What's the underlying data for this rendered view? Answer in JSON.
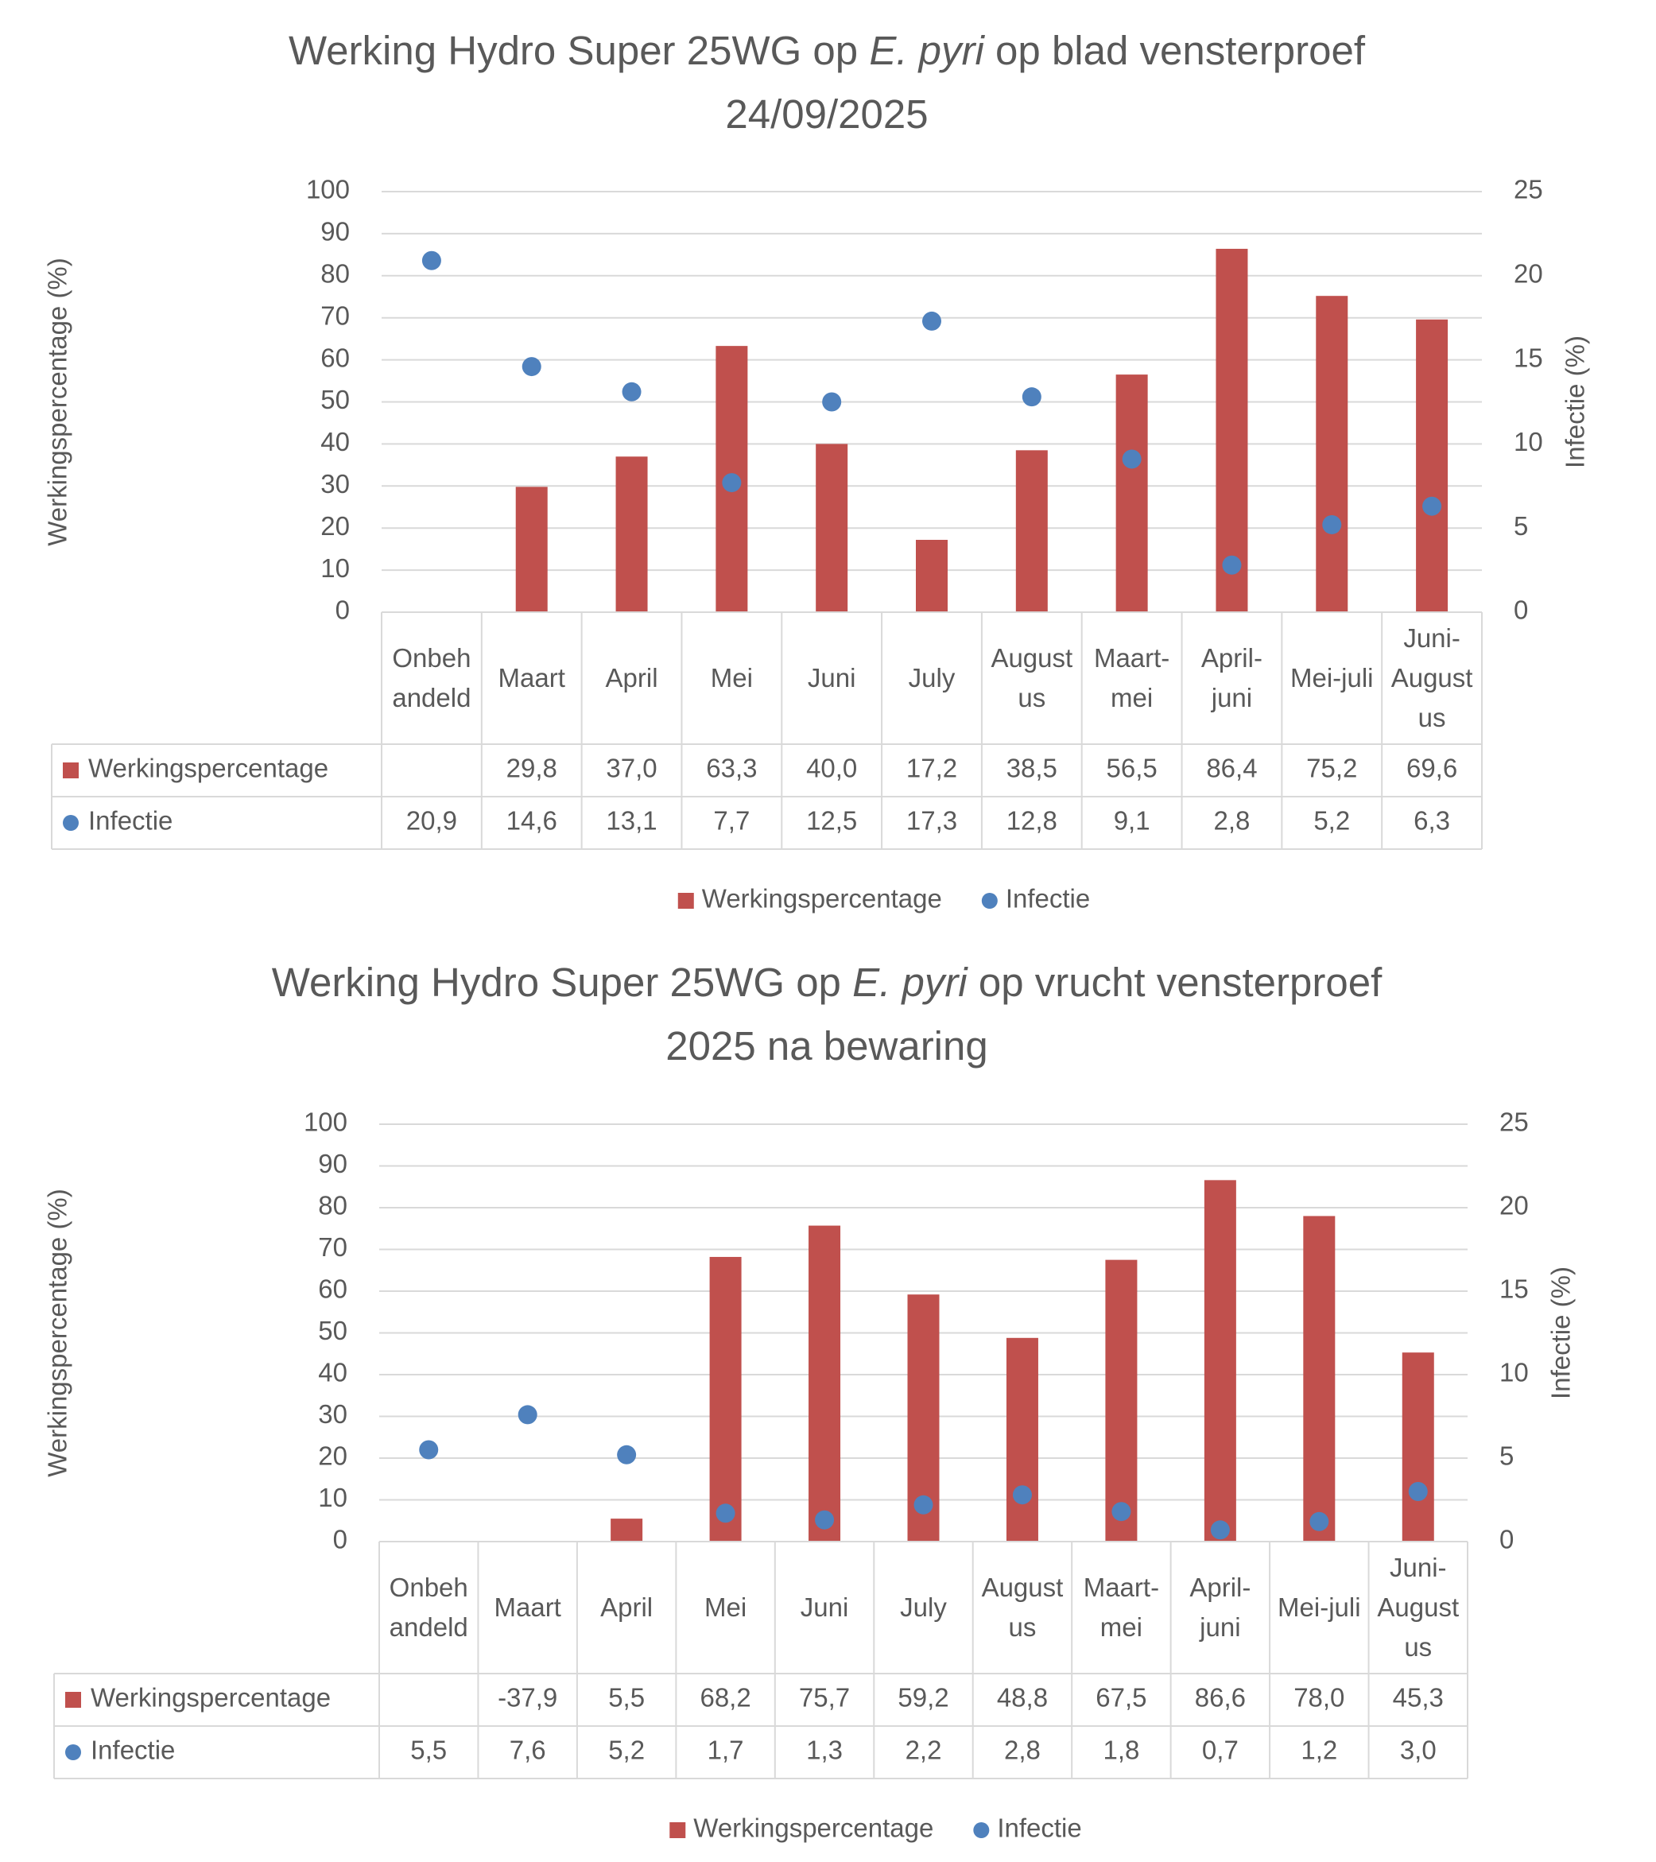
{
  "chart_data": [
    {
      "type": "bar",
      "title": [
        [
          "Werking Hydro Super 25WG op ",
          "E. pyri",
          " op blad vensterproef"
        ],
        [
          "24/09/2025"
        ]
      ],
      "categories": [
        "Onbehandeld",
        "Maart",
        "April",
        "Mei",
        "Juni",
        "July",
        "Augustus",
        "Maart-mei",
        "April-juni",
        "Mei-juli",
        "Juni-Augustus"
      ],
      "series": [
        {
          "name": "Werkingspercentage",
          "type": "bar",
          "color": "#c0504d",
          "values": [
            null,
            29.8,
            37.0,
            63.3,
            40.0,
            17.2,
            38.5,
            56.5,
            86.4,
            75.2,
            69.6
          ],
          "value_labels": [
            null,
            "29,8",
            "37,0",
            "63,3",
            "40,0",
            "17,2",
            "38,5",
            "56,5",
            "86,4",
            "75,2",
            "69,6"
          ]
        },
        {
          "name": "Infectie",
          "type": "scatter",
          "axis": "y2",
          "color": "#4f81bd",
          "values": [
            20.9,
            14.6,
            13.1,
            7.7,
            12.5,
            17.3,
            12.8,
            9.1,
            2.8,
            5.2,
            6.3
          ],
          "value_labels": [
            "20,9",
            "14,6",
            "13,1",
            "7,7",
            "12,5",
            "17,3",
            "12,8",
            "9,1",
            "2,8",
            "5,2",
            "6,3"
          ]
        }
      ],
      "y_label": "Werkingspercentage (%)",
      "y2_label": "Infectie (%)",
      "ylim": [
        0,
        100
      ],
      "yticks": [
        0,
        10,
        20,
        30,
        40,
        50,
        60,
        70,
        80,
        90,
        100
      ],
      "y2lim": [
        0,
        25
      ],
      "y2ticks": [
        0,
        5,
        10,
        15,
        20,
        25
      ],
      "grid": true,
      "legend": "bottom"
    },
    {
      "type": "bar",
      "title": [
        [
          "Werking Hydro Super 25WG op ",
          "E. pyri",
          " op vrucht vensterproef"
        ],
        [
          "2025 na bewaring"
        ]
      ],
      "categories": [
        "Onbehandeld",
        "Maart",
        "April",
        "Mei",
        "Juni",
        "July",
        "Augustus",
        "Maart-mei",
        "April-juni",
        "Mei-juli",
        "Juni-Augustus"
      ],
      "series": [
        {
          "name": "Werkingspercentage",
          "type": "bar",
          "color": "#c0504d",
          "values": [
            null,
            -37.9,
            5.5,
            68.2,
            75.7,
            59.2,
            48.8,
            67.5,
            86.6,
            78.0,
            45.3
          ],
          "value_labels": [
            null,
            "-37,9",
            "5,5",
            "68,2",
            "75,7",
            "59,2",
            "48,8",
            "67,5",
            "86,6",
            "78,0",
            "45,3"
          ]
        },
        {
          "name": "Infectie",
          "type": "scatter",
          "axis": "y2",
          "color": "#4f81bd",
          "values": [
            5.5,
            7.6,
            5.2,
            1.7,
            1.3,
            2.2,
            2.8,
            1.8,
            0.7,
            1.2,
            3.0
          ],
          "value_labels": [
            "5,5",
            "7,6",
            "5,2",
            "1,7",
            "1,3",
            "2,2",
            "2,8",
            "1,8",
            "0,7",
            "1,2",
            "3,0"
          ]
        }
      ],
      "y_label": "Werkingspercentage (%)",
      "y2_label": "Infectie (%)",
      "ylim": [
        0,
        100
      ],
      "yticks": [
        0,
        10,
        20,
        30,
        40,
        50,
        60,
        70,
        80,
        90,
        100
      ],
      "y2lim": [
        0,
        25
      ],
      "y2ticks": [
        0,
        5,
        10,
        15,
        20,
        25
      ],
      "grid": true,
      "legend": "bottom"
    }
  ]
}
